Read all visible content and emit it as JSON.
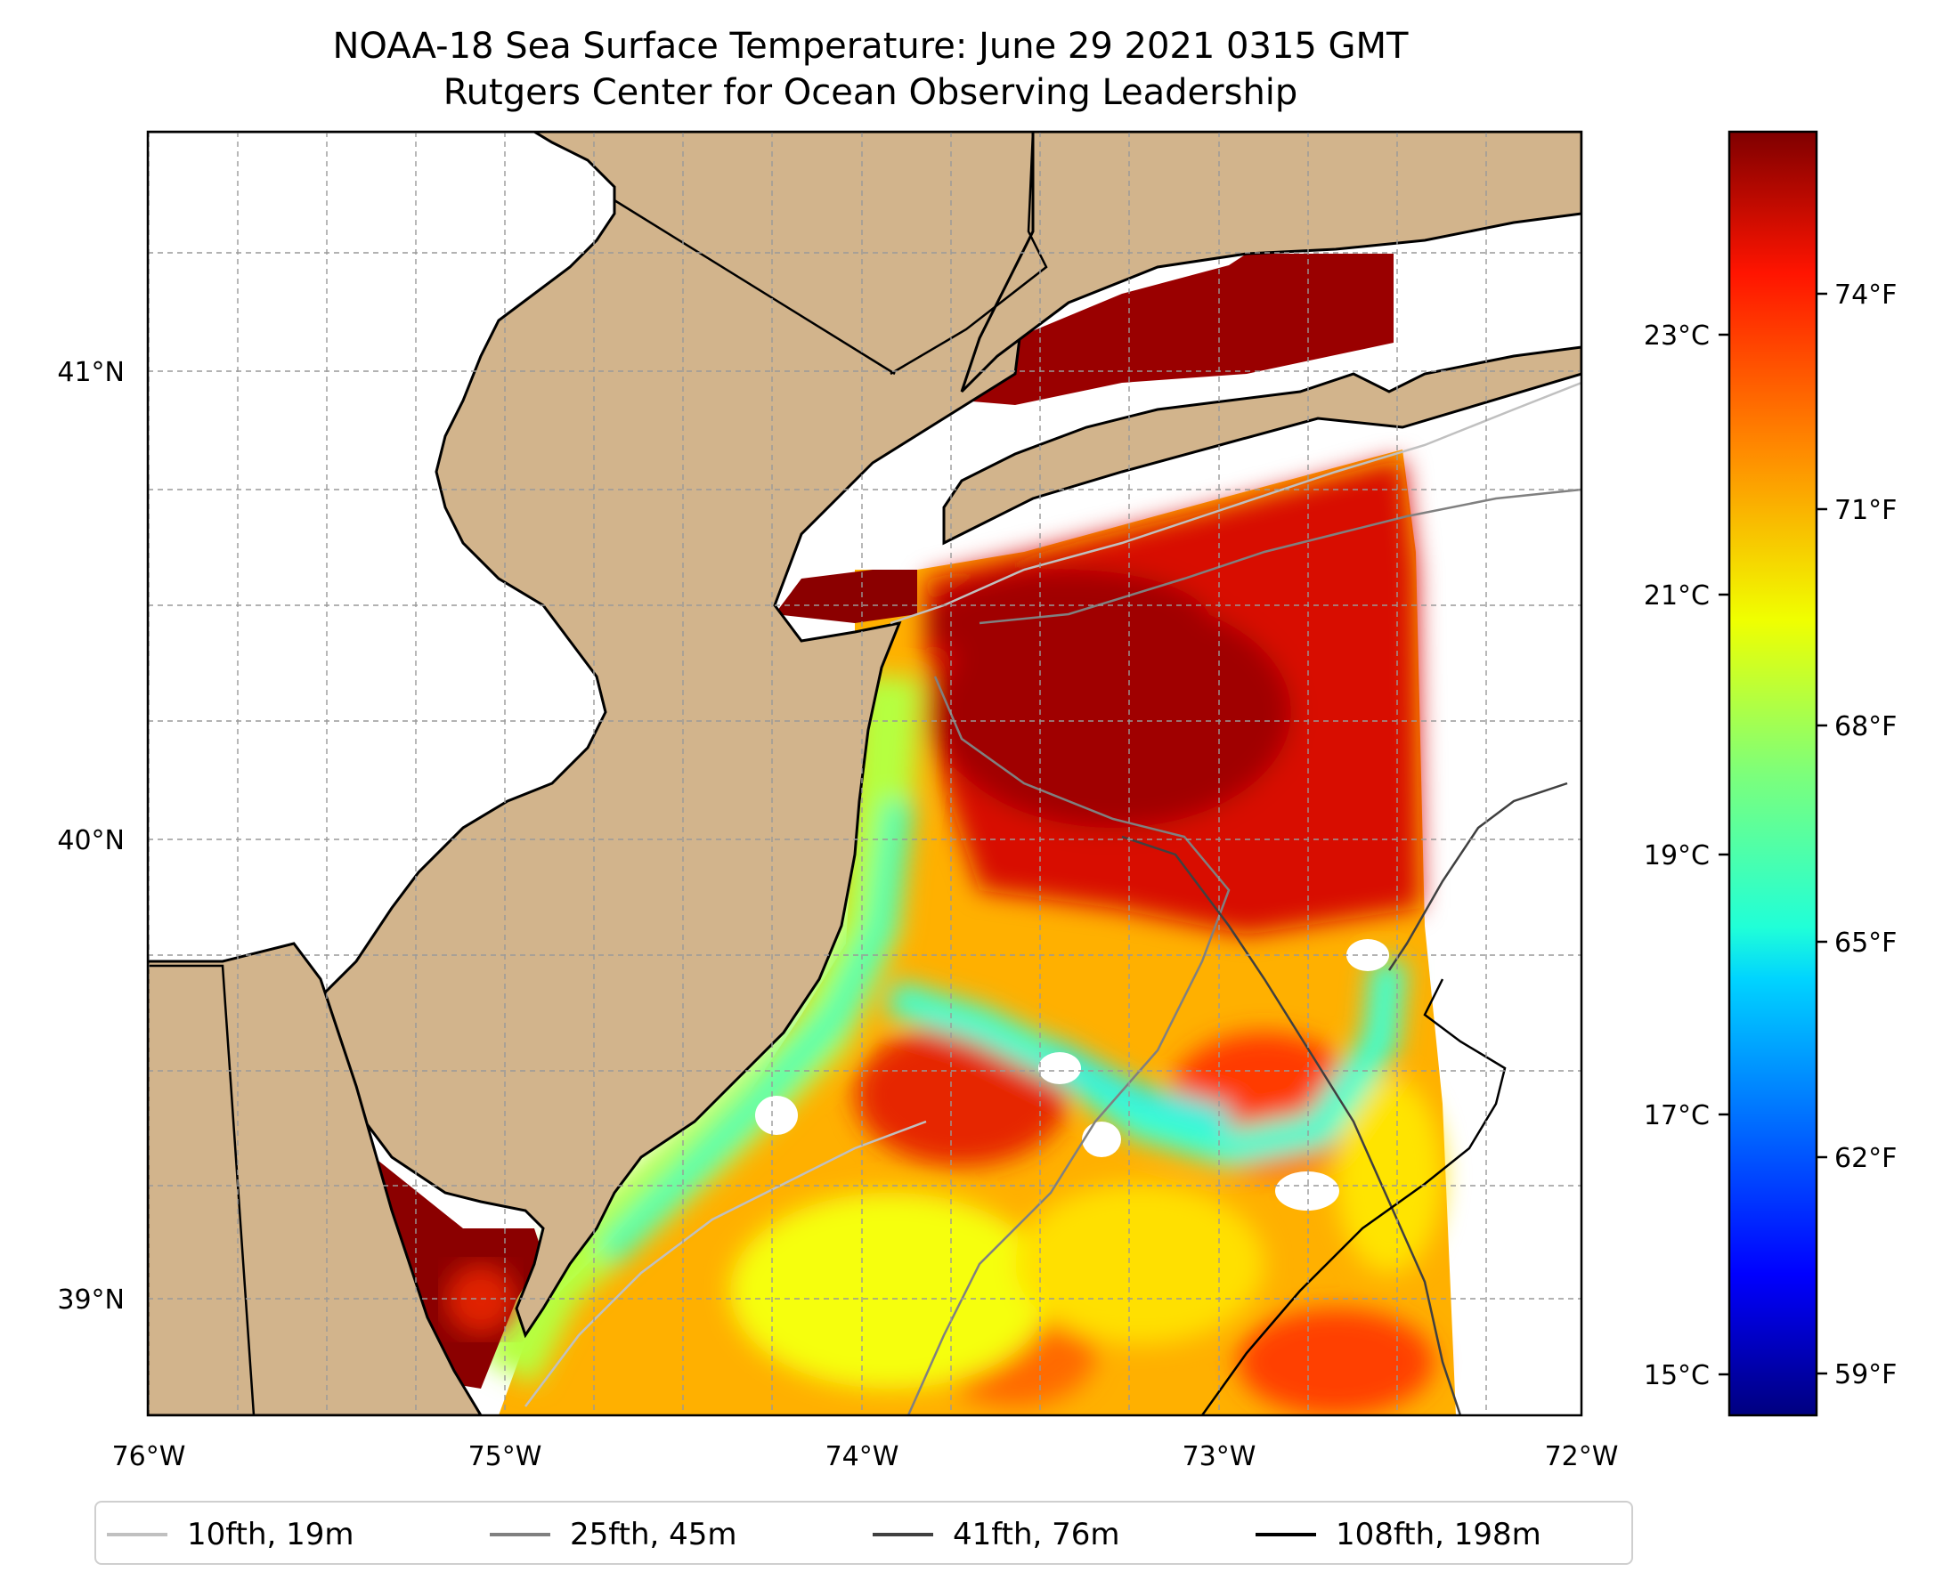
{
  "title": {
    "line1": "NOAA-18 Sea Surface Temperature: June 29 2021 0315 GMT",
    "line2": "Rutgers Center for Ocean Observing Leadership"
  },
  "axes": {
    "lon_ticks": [
      "76°W",
      "75°W",
      "74°W",
      "73°W",
      "72°W"
    ],
    "lat_ticks": [
      "41°N",
      "40°N",
      "39°N"
    ]
  },
  "colorbar": {
    "celsius_ticks": [
      "23°C",
      "21°C",
      "19°C",
      "17°C",
      "15°C"
    ],
    "fahrenheit_ticks": [
      "74°F",
      "71°F",
      "68°F",
      "65°F",
      "62°F",
      "59°F"
    ],
    "colormap": "jet"
  },
  "legend": {
    "items": [
      {
        "label": "10fth, 19m",
        "color": "#c0c0c0"
      },
      {
        "label": "25fth, 45m",
        "color": "#808080"
      },
      {
        "label": "41fth, 76m",
        "color": "#404040"
      },
      {
        "label": "108fth, 198m",
        "color": "#000000"
      }
    ]
  },
  "colors": {
    "land": "#d2b48c",
    "warm": "#8b0000",
    "cool": "#40e0d0"
  }
}
